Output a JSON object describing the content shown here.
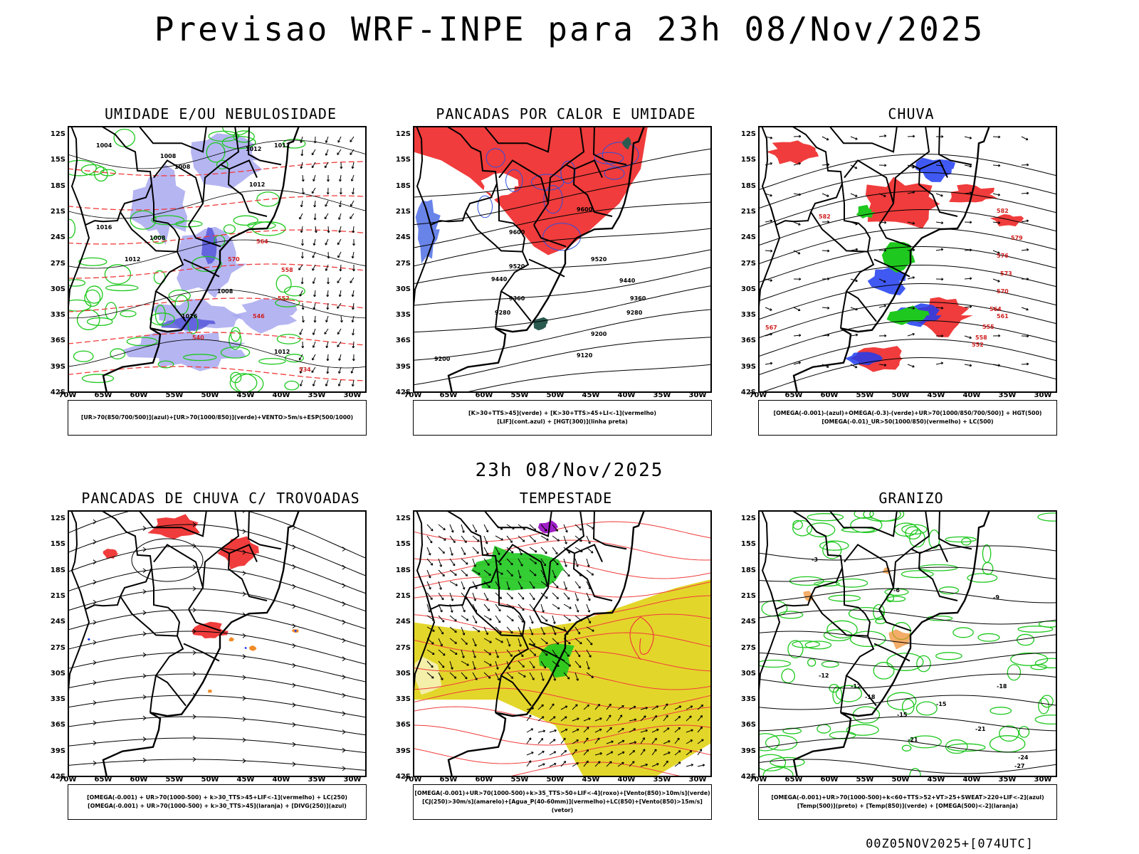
{
  "title": "Previsao WRF-INPE  para 23h 08/Nov/2025",
  "subtitle": "23h 08/Nov/2025",
  "footer": "00Z05NOV2025+[074UTC]",
  "lat_ticks": [
    "12S",
    "15S",
    "18S",
    "21S",
    "24S",
    "27S",
    "30S",
    "33S",
    "36S",
    "39S",
    "42S"
  ],
  "lon_ticks": [
    "70W",
    "65W",
    "60W",
    "55W",
    "50W",
    "45W",
    "40W",
    "35W",
    "30W"
  ],
  "colors": {
    "blue_fill": "#a8a8f0",
    "red": "#f03c3c",
    "green": "#1ec81e",
    "yellow": "#e3d62a",
    "orange": "#f08a28",
    "purple": "#a020c8",
    "dark": "#2a5a50"
  },
  "panels": [
    {
      "title": "UMIDADE E/OU NEBULOSIDADE",
      "legend": [
        "[UR>70(850/700/500)](azul)+[UR>70(1000/850)](verde)+VENTO>5m/s+ESP(500/1000)"
      ],
      "labels": [
        "1004",
        "1008",
        "1008",
        "1012",
        "1012",
        "1012",
        "1016",
        "1016",
        "1012",
        "1008",
        "1008",
        "1012",
        "570",
        "564",
        "558",
        "552",
        "546",
        "540",
        "534"
      ]
    },
    {
      "title": "PANCADAS POR CALOR E UMIDADE",
      "legend": [
        "[K>30+TTS>45](verde) + [K>30+TTS>45+LI<-1](vermelho)",
        "[LIF](cont.azul) + [HGT(300)](linha preta)"
      ],
      "labels": [
        "9600",
        "9520",
        "9440",
        "9360",
        "9280",
        "9200",
        "9120",
        "9600",
        "9520",
        "9440",
        "9360",
        "9280",
        "9200"
      ]
    },
    {
      "title": "CHUVA",
      "legend": [
        "[OMEGA(-0.001)-(azul)+OMEGA(-0.3)-(verde)+UR>70(1000/850/700/500)] + HGT(500)",
        "[OMEGA(-0.01)_UR>50(1000/850)(vermelho) + LC(500)"
      ],
      "labels": [
        "582",
        "582",
        "579",
        "576",
        "573",
        "570",
        "567",
        "564",
        "561",
        "558",
        "555",
        "552"
      ]
    },
    {
      "title": "PANCADAS DE CHUVA C/ TROVOADAS",
      "legend": [
        "[OMEGA(-0.001) + UR>70(1000-500) + k>30_TTS>45+LIF<-1](vermelho) + LC(250)",
        "[OMEGA(-0.001) + UR>70(1000-500) + k>30_TTS>45](laranja) + [DIVG(250)](azul)"
      ],
      "labels": []
    },
    {
      "title": "TEMPESTADE",
      "legend": [
        "[OMEGA(-0.001)+UR>70(1000-500)+k>35_TTS>50+LIF<-4](roxo)+[Vento(850)>10m/s](verde)",
        "[CJ(250)>30m/s](amarelo)+[Agua_P(40-60mm)](vermelho)+LC(850)+[Vento(850)>15m/s](vetor)"
      ],
      "labels": []
    },
    {
      "title": "GRANIZO",
      "legend": [
        "[OMEGA(-0.001)+UR>70(1000-500)+k<60+TTS>52+VT>25+SWEAT>220+LIF<-2](azul)",
        "[Temp(500)](preto) + [Temp(850)](verde) + [OMEGA(500)<-2](laranja)"
      ],
      "labels": [
        "-3",
        "-6",
        "-9",
        "-12",
        "-12",
        "-15",
        "-15",
        "-18",
        "-18",
        "-21",
        "-21",
        "-24",
        "-27"
      ]
    }
  ]
}
